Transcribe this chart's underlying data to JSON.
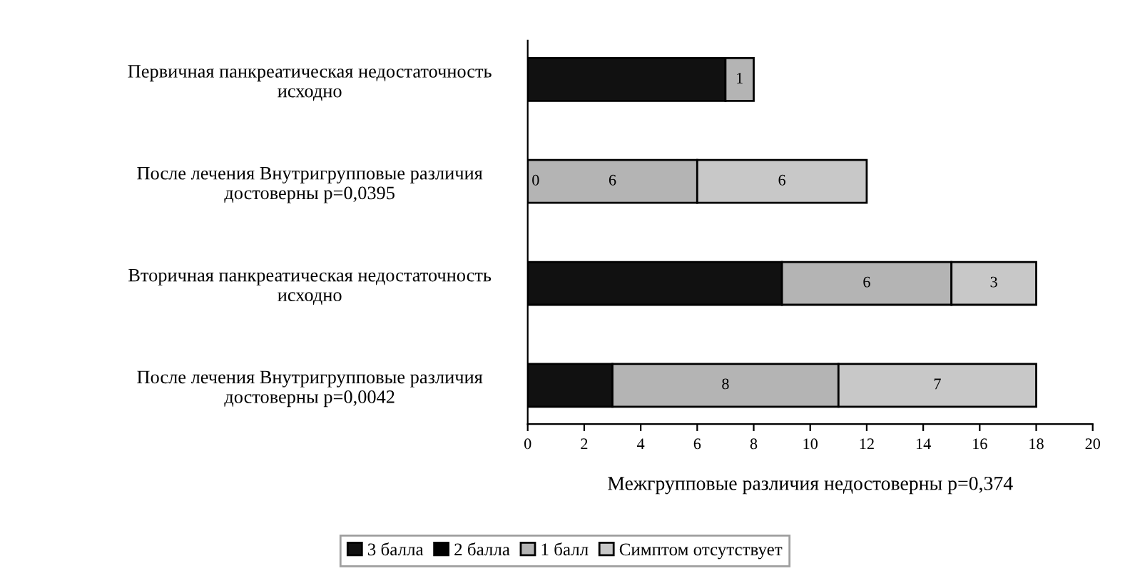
{
  "chart_data": {
    "type": "bar",
    "orientation": "horizontal",
    "stacked": true,
    "categories": [
      "Первичная панкреатическая недостаточность\nисходно",
      "После лечения Внутригрупповые различия\nдостоверны р=0,0395",
      "Вторичная панкреатическая недостаточность\nисходно",
      "После лечения Внутригрупповые различия\nдостоверны р=0,0042"
    ],
    "series": [
      {
        "name": "3 балла",
        "color": "#111111",
        "values": [
          7,
          null,
          9,
          3
        ]
      },
      {
        "name": "2 балла",
        "color": "#000000",
        "values": [
          null,
          null,
          null,
          null
        ]
      },
      {
        "name": "1 балл",
        "color": "#b4b4b4",
        "values": [
          1,
          6,
          6,
          8
        ],
        "value_labels": [
          "1",
          "6",
          "6",
          "8"
        ]
      },
      {
        "name": "Симптом отсутствует",
        "color": "#c8c8c8",
        "values": [
          null,
          6,
          3,
          7
        ],
        "value_labels": [
          null,
          "6",
          "3",
          "7"
        ]
      }
    ],
    "annotations": [
      {
        "text": "0",
        "x": 0,
        "y": "После лечения Внутригрупповые различия\nдостоверны р=0,0395"
      }
    ],
    "xlabel": "Межгрупповые различия недостоверны р=0,374",
    "xlim": [
      0,
      20
    ],
    "xticks": [
      0,
      2,
      4,
      6,
      8,
      10,
      12,
      14,
      16,
      18,
      20
    ],
    "grid": false,
    "legend": "bottom"
  }
}
